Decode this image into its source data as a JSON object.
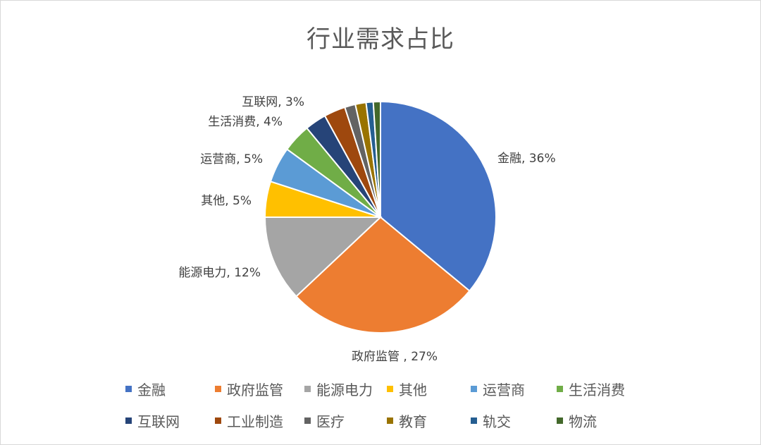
{
  "chart_data": {
    "type": "pie",
    "title": "行业需求占比",
    "categories": [
      "金融",
      "政府监管",
      "能源电力",
      "其他",
      "运营商",
      "生活消费",
      "互联网",
      "工业制造",
      "医疗",
      "教育",
      "轨交",
      "物流"
    ],
    "values": [
      36,
      27,
      12,
      5,
      5,
      4,
      3,
      3,
      1.5,
      1.5,
      1,
      1
    ],
    "colors": [
      "#4472C4",
      "#ED7D31",
      "#A5A5A5",
      "#FFC000",
      "#5B9BD5",
      "#70AD47",
      "#264478",
      "#9E480E",
      "#636363",
      "#997300",
      "#255E91",
      "#43682B"
    ],
    "data_labels": [
      {
        "text": "金融, 36%"
      },
      {
        "text": "政府监管 , 27%"
      },
      {
        "text": "能源电力, 12%"
      },
      {
        "text": "其他, 5%"
      },
      {
        "text": "运营商, 5%"
      },
      {
        "text": "生活消费, 4%"
      },
      {
        "text": "互联网, 3%"
      }
    ],
    "legend_placement": "bottom"
  },
  "legend": {
    "row1": [
      "金融",
      "政府监管",
      "能源电力",
      "其他",
      "运营商",
      "生活消费"
    ],
    "row2": [
      "互联网",
      "工业制造",
      "医疗",
      "教育",
      "轨交",
      "物流"
    ]
  }
}
